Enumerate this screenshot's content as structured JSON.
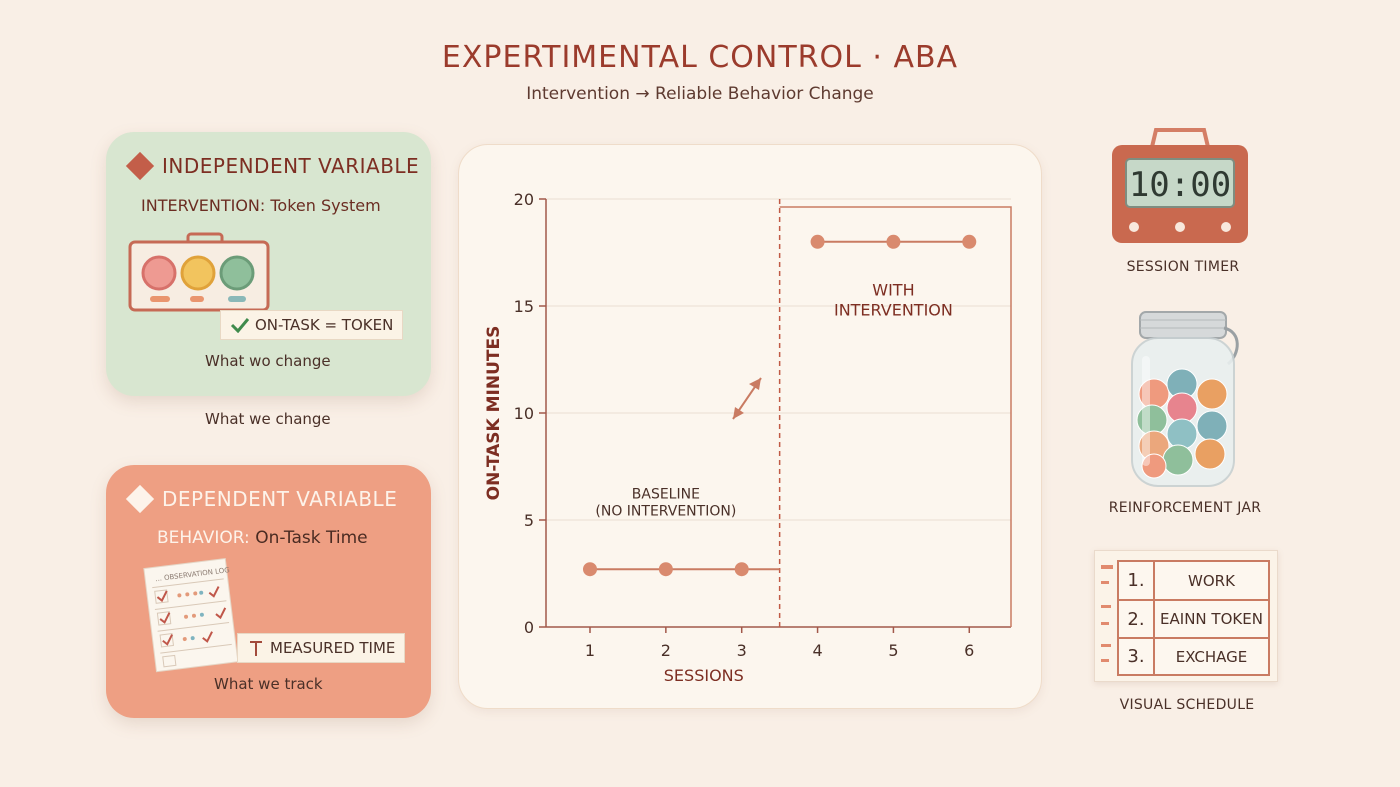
{
  "header": {
    "title": "EXPERTIMENTAL CONTROL · ABA",
    "subtitle": "Intervention → Reliable Behavior Change"
  },
  "independent": {
    "heading": "INDEPENDENT VARIABLE",
    "label_prefix": "INTERVENTION:",
    "label_value": "Token System",
    "tag": "ON-TASK = TOKEN",
    "caption_inner": "What wo change",
    "caption_outer": "What we change",
    "token_colors": [
      "#ee9a92",
      "#f2c45e",
      "#8fbf9b"
    ]
  },
  "dependent": {
    "heading": "DEPENDENT VARIABLE",
    "label_prefix": "BEHAVIOR:",
    "label_value": "On-Task Time",
    "sheet_header": "... OBSERVATION LOG",
    "tag": "MEASURED TIME",
    "caption": "What we track"
  },
  "chart_data": {
    "type": "line",
    "xlabel": "SESSIONS",
    "ylabel": "ON-TASK MINUTES",
    "ylim": [
      0,
      20
    ],
    "yticks": [
      0,
      5,
      10,
      15,
      20
    ],
    "x": [
      1,
      2,
      3,
      4,
      5,
      6
    ],
    "series": [
      {
        "phase": "baseline",
        "x": [
          1,
          2,
          3
        ],
        "y": [
          2.7,
          2.7,
          2.7
        ]
      },
      {
        "phase": "intervention",
        "x": [
          4,
          5,
          6
        ],
        "y": [
          18,
          18,
          18
        ]
      }
    ],
    "phase_change_after": 3.5,
    "annotations": {
      "baseline": [
        "BASELINE",
        "(NO INTERVENTION)"
      ],
      "intervention": [
        "WITH",
        "INTERVENTION"
      ]
    },
    "line_color": "#c97b62",
    "point_color": "#d98a6e"
  },
  "sidebar": {
    "timer_display": "10:00",
    "timer_label": "SESSION TIMER",
    "jar_label": "REINFORCEMENT JAR",
    "schedule": [
      {
        "num": "1.",
        "step": "WORK"
      },
      {
        "num": "2.",
        "step": "EAINN TOKEN"
      },
      {
        "num": "3.",
        "step": "EXCHAGE"
      }
    ],
    "schedule_label": "VISUAL SCHEDULE"
  },
  "colors": {
    "accent": "#c35e49",
    "title": "#9b3b2c",
    "iv_card": "#d8e6d0",
    "dv_card": "#ee9f83",
    "check": "#3f8a4c"
  }
}
